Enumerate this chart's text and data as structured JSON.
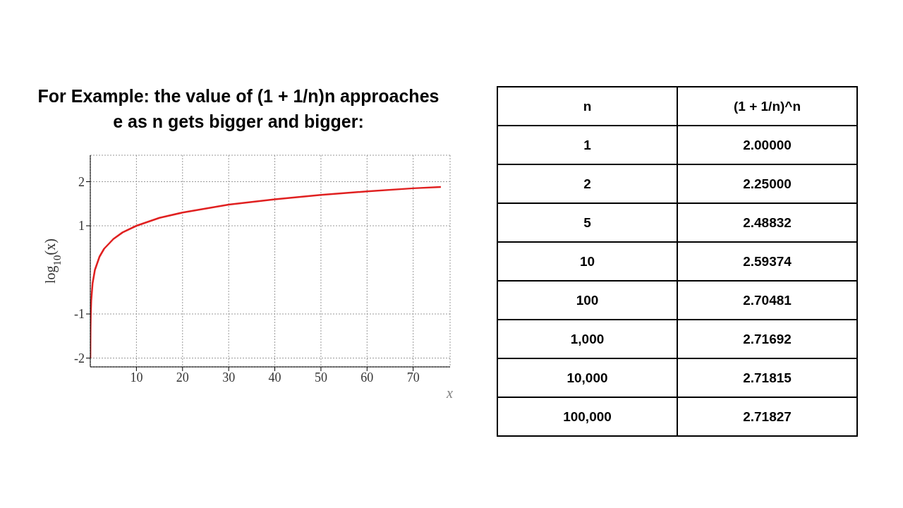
{
  "chart_data": [
    {
      "type": "line",
      "title": "For Example: the value of (1 + 1/n)n approaches e as n gets bigger and bigger:",
      "xlabel": "x",
      "ylabel": "log$_{10}$(x)",
      "x": [
        0.01,
        0.02,
        0.05,
        0.1,
        0.2,
        0.5,
        1,
        2,
        3,
        5,
        7,
        10,
        15,
        20,
        30,
        40,
        50,
        60,
        70,
        76
      ],
      "series": [
        {
          "color": "#e02020",
          "values": [
            -2,
            -1.7,
            -1.3,
            -1,
            -0.7,
            -0.3,
            0,
            0.3,
            0.48,
            0.7,
            0.85,
            1,
            1.18,
            1.3,
            1.48,
            1.6,
            1.7,
            1.78,
            1.85,
            1.88
          ]
        }
      ],
      "xlim": [
        0,
        78
      ],
      "xticks": [
        10,
        20,
        30,
        40,
        50,
        60,
        70
      ],
      "ylim": [
        -2.2,
        2.6
      ],
      "yticks": [
        -2,
        -1,
        1,
        2
      ],
      "grid": true,
      "line_style": "solid",
      "marker": "none",
      "legend": false
    },
    {
      "type": "other",
      "annotations": [
        "n",
        "(1 + 1/n)^n"
      ],
      "categories": [
        "1",
        "2",
        "5",
        "10",
        "100",
        "1,000",
        "10,000",
        "100,000"
      ],
      "value_labels": [
        "2.00000",
        "2.25000",
        "2.48832",
        "2.59374",
        "2.70481",
        "2.71692",
        "2.71815",
        "2.71827"
      ]
    }
  ]
}
